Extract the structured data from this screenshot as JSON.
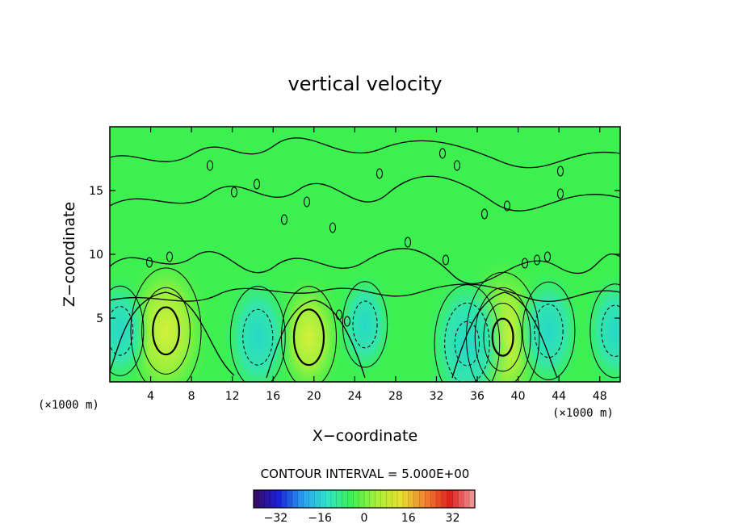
{
  "chart_data": {
    "type": "heatmap",
    "title": "vertical velocity",
    "xlabel": "X−coordinate",
    "ylabel": "Z−coordinate",
    "x_unit": "(×1000 m)",
    "xlim": [
      0,
      50
    ],
    "ylim": [
      0,
      20
    ],
    "xticks": [
      4,
      8,
      12,
      16,
      20,
      24,
      28,
      32,
      36,
      40,
      44,
      48
    ],
    "yticks": [
      5,
      10,
      15
    ],
    "contour_interval_text": "CONTOUR INTERVAL = 5.000E+00",
    "colorbar": {
      "range": [
        -40,
        40
      ],
      "ticks": [
        -32,
        -16,
        0,
        16,
        32
      ],
      "tick_labels": [
        "−32",
        "−16",
        "0",
        "16",
        "32"
      ],
      "colors": [
        "#3a0a5c",
        "#1a1fd8",
        "#2aa0f0",
        "#30e6c8",
        "#3cf050",
        "#a8f038",
        "#e8e030",
        "#f08030",
        "#e02020",
        "#f0a0a0"
      ]
    },
    "features": [
      {
        "kind": "updraft",
        "x": 5.5,
        "z": 4.0,
        "peak": 14
      },
      {
        "kind": "updraft",
        "x": 19.5,
        "z": 3.5,
        "peak": 8
      },
      {
        "kind": "updraft",
        "x": 38.5,
        "z": 3.5,
        "peak": 15
      },
      {
        "kind": "downdraft",
        "x": 14.5,
        "z": 3.5,
        "peak": -8
      },
      {
        "kind": "downdraft",
        "x": 35.0,
        "z": 3.0,
        "peak": -12
      },
      {
        "kind": "downdraft",
        "x": 43.0,
        "z": 4.0,
        "peak": -7
      },
      {
        "kind": "downdraft",
        "x": 49.5,
        "z": 4.0,
        "peak": -6
      },
      {
        "kind": "downdraft",
        "x": 1.0,
        "z": 4.0,
        "peak": -5
      },
      {
        "kind": "downdraft",
        "x": 25.0,
        "z": 4.5,
        "peak": -4
      }
    ],
    "background_value": 0
  }
}
